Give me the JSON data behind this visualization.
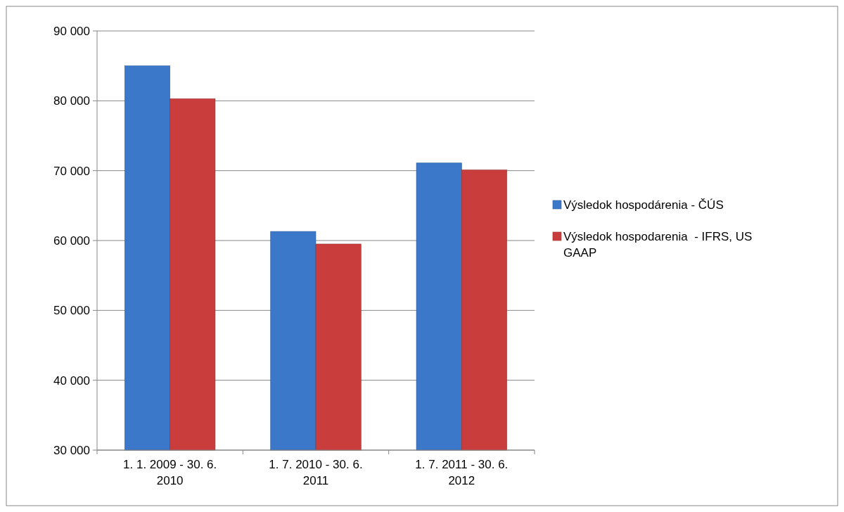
{
  "chart_data": {
    "type": "bar",
    "categories": [
      "1. 1. 2009 - 30. 6. 2010",
      "1. 7. 2010 - 30. 6. 2011",
      "1. 7. 2011 - 30. 6. 2012"
    ],
    "series": [
      {
        "name": "Výsledok hospodárenia - ČÚS",
        "color": "#3b78c9",
        "values": [
          85000,
          61300,
          71100
        ]
      },
      {
        "name": "Výsledok hospodarenia  - IFRS, US GAAP",
        "color": "#c93d3d",
        "values": [
          80300,
          59500,
          70100
        ]
      }
    ],
    "ylim": [
      30000,
      90000
    ],
    "yticks": [
      {
        "value": 30000,
        "label": "30 000"
      },
      {
        "value": 40000,
        "label": "40 000"
      },
      {
        "value": 50000,
        "label": "50 000"
      },
      {
        "value": 60000,
        "label": "60 000"
      },
      {
        "value": 70000,
        "label": "70 000"
      },
      {
        "value": 80000,
        "label": "80 000"
      },
      {
        "value": 90000,
        "label": "90 000"
      }
    ],
    "grid": "y",
    "legend": "right"
  }
}
